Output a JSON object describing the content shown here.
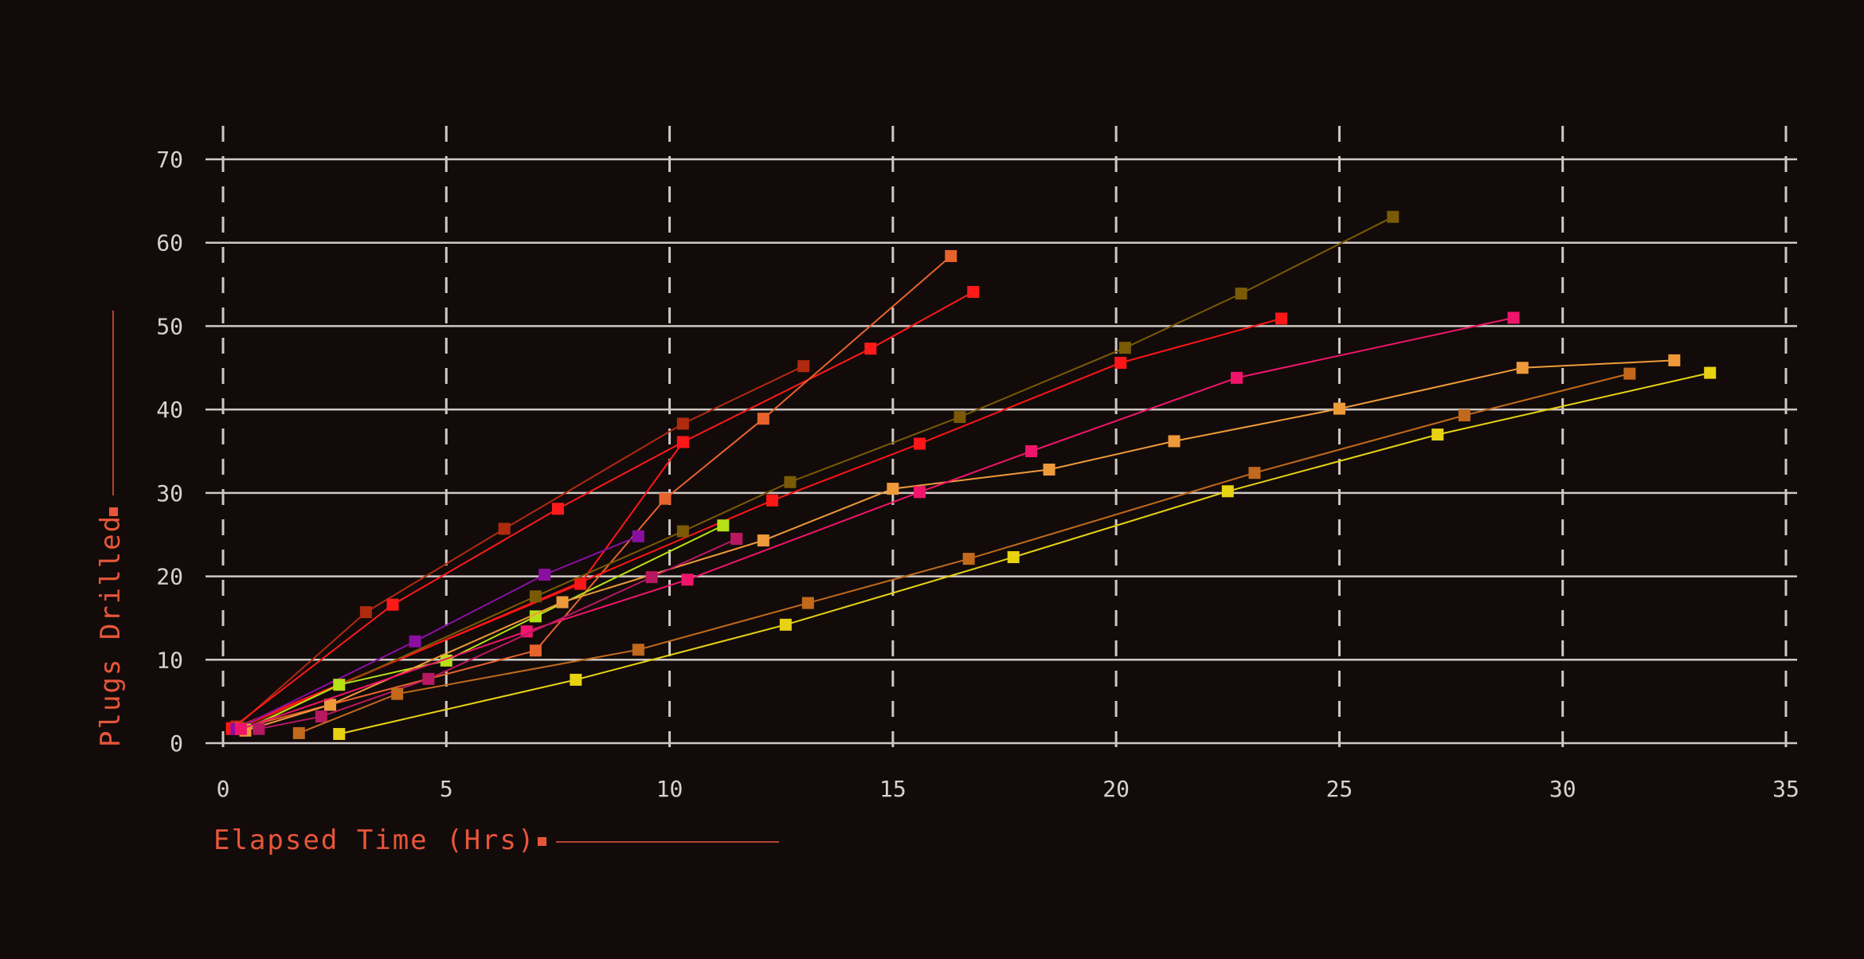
{
  "chart_data": {
    "type": "scatter",
    "xlabel": "Elapsed Time (Hrs)",
    "ylabel": "Plugs Drilled",
    "xlim": [
      0,
      35
    ],
    "ylim": [
      0,
      70
    ],
    "x_ticks": [
      "0",
      "5",
      "10",
      "15",
      "20",
      "25",
      "30",
      "35"
    ],
    "y_ticks": [
      "0",
      "10",
      "20",
      "30",
      "40",
      "50",
      "60",
      "70"
    ],
    "grid": true,
    "label_color": "#e8563a",
    "series": [
      {
        "color": "#b02a0e",
        "points": [
          [
            0.3,
            2
          ],
          [
            3.2,
            15.7
          ],
          [
            6.3,
            25.7
          ],
          [
            10.3,
            38.3
          ],
          [
            13,
            45.2
          ]
        ]
      },
      {
        "color": "#ff1a1a",
        "points": [
          [
            0.2,
            1.8
          ],
          [
            3.8,
            16.6
          ],
          [
            7.5,
            28.1
          ],
          [
            10.3,
            36.1
          ],
          [
            14.5,
            47.3
          ],
          [
            16.8,
            54.1
          ]
        ]
      },
      {
        "color": "#e8632c",
        "points": [
          [
            0.4,
            1.8
          ],
          [
            7,
            11.1
          ],
          [
            9.9,
            29.3
          ],
          [
            12.1,
            38.9
          ],
          [
            16.3,
            58.4
          ]
        ]
      },
      {
        "color": "#ff1616",
        "points": [
          [
            0.2,
            1.7
          ],
          [
            8,
            19.1
          ],
          [
            10.3,
            36.1
          ]
        ]
      },
      {
        "color": "#ff1616",
        "points": [
          [
            0.3,
            1.7
          ],
          [
            12.3,
            29.1
          ],
          [
            15.6,
            35.9
          ],
          [
            20.1,
            45.6
          ],
          [
            23.7,
            50.9
          ]
        ]
      },
      {
        "color": "#7a5a06",
        "points": [
          [
            0.5,
            1.8
          ],
          [
            7,
            17.6
          ],
          [
            10.3,
            25.4
          ],
          [
            12.7,
            31.3
          ],
          [
            16.5,
            39.1
          ],
          [
            20.2,
            47.4
          ],
          [
            22.8,
            53.9
          ],
          [
            26.2,
            63.1
          ]
        ]
      },
      {
        "color": "#8a0fa0",
        "points": [
          [
            0.3,
            1.7
          ],
          [
            4.3,
            12.2
          ],
          [
            7.2,
            20.2
          ],
          [
            9.3,
            24.8
          ]
        ]
      },
      {
        "color": "#b8e016",
        "points": [
          [
            0.5,
            1.6
          ],
          [
            2.6,
            7
          ],
          [
            5,
            9.9
          ],
          [
            7,
            15.2
          ],
          [
            11.2,
            26.1
          ]
        ]
      },
      {
        "color": "#ef9a3a",
        "points": [
          [
            0.5,
            1.5
          ],
          [
            2.4,
            4.6
          ],
          [
            7.6,
            16.9
          ],
          [
            12.1,
            24.3
          ],
          [
            15,
            30.5
          ],
          [
            18.5,
            32.8
          ],
          [
            21.3,
            36.2
          ],
          [
            25,
            40.1
          ],
          [
            29.1,
            45
          ],
          [
            32.5,
            45.9
          ]
        ]
      },
      {
        "color": "#f0156a",
        "points": [
          [
            0.4,
            1.7
          ],
          [
            6.8,
            13.4
          ],
          [
            10.4,
            19.6
          ],
          [
            15.6,
            30.1
          ],
          [
            18.1,
            35
          ],
          [
            22.7,
            43.8
          ],
          [
            28.9,
            51
          ]
        ]
      },
      {
        "color": "#b81861",
        "points": [
          [
            0.8,
            1.7
          ],
          [
            2.2,
            3.2
          ],
          [
            4.6,
            7.7
          ],
          [
            9.6,
            19.9
          ],
          [
            11.5,
            24.5
          ]
        ]
      },
      {
        "color": "#c2691c",
        "points": [
          [
            1.7,
            1.2
          ],
          [
            3.9,
            5.9
          ],
          [
            9.3,
            11.2
          ],
          [
            13.1,
            16.8
          ],
          [
            16.7,
            22.1
          ],
          [
            23.1,
            32.4
          ],
          [
            27.8,
            39.3
          ],
          [
            31.5,
            44.3
          ]
        ]
      },
      {
        "color": "#e8d212",
        "points": [
          [
            2.6,
            1.1
          ],
          [
            7.9,
            7.6
          ],
          [
            12.6,
            14.2
          ],
          [
            17.7,
            22.3
          ],
          [
            22.5,
            30.2
          ],
          [
            27.2,
            37
          ],
          [
            33.3,
            44.4
          ]
        ]
      }
    ]
  }
}
